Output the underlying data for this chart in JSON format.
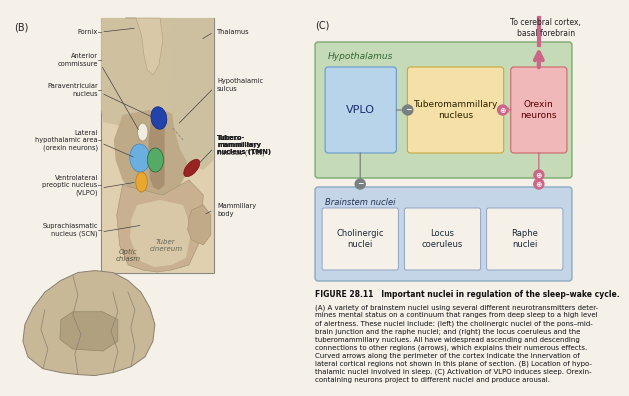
{
  "bg_color": "#f5f0e8",
  "panel_c_label": "(C)",
  "panel_b_label": "(B)",
  "to_cortex_text": "To cerebral cortex,\nbasal forebrain",
  "hypothalamus_label": "Hypothalamus",
  "hypothalamus_color": "#c5dbb8",
  "hypothalamus_border": "#7aab6e",
  "brainstem_label": "Brainstem nuclei",
  "brainstem_color": "#c5d5e8",
  "brainstem_border": "#8aaac0",
  "vplo_label": "VPLO",
  "vplo_color": "#b8d4ea",
  "vplo_border": "#6699cc",
  "tmn_label": "Tuberomammillary\nnucleus",
  "tmn_color": "#f5e0a8",
  "tmn_border": "#c8a840",
  "orexin_label": "Orexin\nneurons",
  "orexin_color": "#f0b8b8",
  "orexin_border": "#cc6666",
  "cholinergic_label": "Cholinergic\nnuclei",
  "locus_label": "Locus\ncoeruleus",
  "raphe_label": "Raphe\nnuclei",
  "figure_title": "FIGURE 28.11   Important nuclei in regulation of the sleep–wake cycle.",
  "caption_bold": "FIGURE 28.11   Important nuclei in regulation of the sleep–wake cycle.",
  "caption_body": "(A) A variety of brainstem nuclei using several different neurotransmitters deter-\nmines mental status on a continuum that ranges from deep sleep to a high level\nof alertness. These nuclei include: (left) the cholinergic nuclei of the pons–mid-\nbrain junction and the raphe nuclei; and (right) the locus coeruleus and the\ntuberomammillary nuclues. All have widespread ascending and descending\nconnections to other regions (arrows), which explains their numerous effects.\nCurved arrows along the perimeter of the cortex indicate the innervation of\nlateral cortical regions not shown in this plane of section. (B) Location of hypo-\nthalamic nuclei involved in sleep. (C) Activation of VLPO induces sleep. Orexin-\ncontaining neurons project to different nuclei and produce arousal.",
  "arrow_gray": "#7a8080",
  "arrow_pink": "#cc6688",
  "inhibit_color": "#6688aa",
  "excite_color": "#cc6688",
  "brain_bg": "#d8c9a8",
  "brain_border": "#a09070",
  "anatomy_bg": "#e0d0b0",
  "thal_color": "#c8b898",
  "hyp_region": "#c0a880",
  "pv_color": "#2244aa",
  "lha_color": "#6aafe0",
  "green_color": "#55aa66",
  "vlpo_color": "#e8a830",
  "tmn_anat_color": "#992222",
  "ac_color": "#f0ece0"
}
